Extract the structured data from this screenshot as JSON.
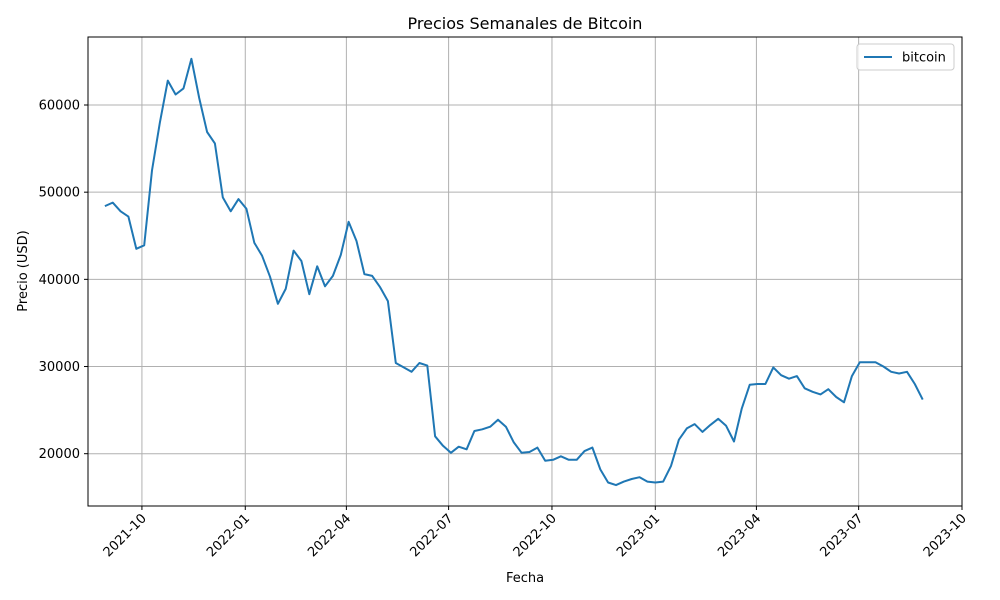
{
  "chart_data": {
    "type": "line",
    "title": "Precios Semanales de Bitcoin",
    "xlabel": "Fecha",
    "ylabel": "Precio (USD)",
    "grid": true,
    "legend_position": "top-right",
    "xlim": [
      "2021-08-14",
      "2023-10-01"
    ],
    "ylim": [
      14000,
      67800
    ],
    "x_ticks": [
      "2021-10-01",
      "2022-01-01",
      "2022-04-01",
      "2022-07-01",
      "2022-10-01",
      "2023-01-01",
      "2023-04-01",
      "2023-07-01",
      "2023-10-01"
    ],
    "x_tick_labels": [
      "2021-10",
      "2022-01",
      "2022-04",
      "2022-07",
      "2022-10",
      "2023-01",
      "2023-04",
      "2023-07",
      "2023-10"
    ],
    "y_ticks": [
      20000,
      30000,
      40000,
      50000,
      60000
    ],
    "y_tick_labels": [
      "20000",
      "30000",
      "40000",
      "50000",
      "60000"
    ],
    "colors": {
      "line": "#1f77b4",
      "grid": "#b0b0b0"
    },
    "series": [
      {
        "name": "bitcoin",
        "x": [
          "2021-08-29",
          "2021-09-05",
          "2021-09-12",
          "2021-09-19",
          "2021-09-26",
          "2021-10-03",
          "2021-10-10",
          "2021-10-17",
          "2021-10-24",
          "2021-10-31",
          "2021-11-07",
          "2021-11-14",
          "2021-11-21",
          "2021-11-28",
          "2021-12-05",
          "2021-12-12",
          "2021-12-19",
          "2021-12-26",
          "2022-01-02",
          "2022-01-09",
          "2022-01-16",
          "2022-01-23",
          "2022-01-30",
          "2022-02-06",
          "2022-02-13",
          "2022-02-20",
          "2022-02-27",
          "2022-03-06",
          "2022-03-13",
          "2022-03-20",
          "2022-03-27",
          "2022-04-03",
          "2022-04-10",
          "2022-04-17",
          "2022-04-24",
          "2022-05-01",
          "2022-05-08",
          "2022-05-15",
          "2022-05-22",
          "2022-05-29",
          "2022-06-05",
          "2022-06-12",
          "2022-06-19",
          "2022-06-26",
          "2022-07-03",
          "2022-07-10",
          "2022-07-17",
          "2022-07-24",
          "2022-07-31",
          "2022-08-07",
          "2022-08-14",
          "2022-08-21",
          "2022-08-28",
          "2022-09-04",
          "2022-09-11",
          "2022-09-18",
          "2022-09-25",
          "2022-10-02",
          "2022-10-09",
          "2022-10-16",
          "2022-10-23",
          "2022-10-30",
          "2022-11-06",
          "2022-11-13",
          "2022-11-20",
          "2022-11-27",
          "2022-12-04",
          "2022-12-11",
          "2022-12-18",
          "2022-12-25",
          "2023-01-01",
          "2023-01-08",
          "2023-01-15",
          "2023-01-22",
          "2023-01-29",
          "2023-02-05",
          "2023-02-12",
          "2023-02-19",
          "2023-02-26",
          "2023-03-05",
          "2023-03-12",
          "2023-03-19",
          "2023-03-26",
          "2023-04-02",
          "2023-04-09",
          "2023-04-16",
          "2023-04-23",
          "2023-04-30",
          "2023-05-07",
          "2023-05-14",
          "2023-05-21",
          "2023-05-28",
          "2023-06-04",
          "2023-06-11",
          "2023-06-18",
          "2023-06-25",
          "2023-07-02",
          "2023-07-09",
          "2023-07-16",
          "2023-07-23",
          "2023-07-30",
          "2023-08-06",
          "2023-08-13",
          "2023-08-20",
          "2023-08-27"
        ],
        "y": [
          48400,
          48800,
          47800,
          47200,
          43500,
          43900,
          52500,
          58000,
          62800,
          61200,
          61900,
          65300,
          60800,
          56900,
          55600,
          49400,
          47800,
          49200,
          48100,
          44200,
          42700,
          40300,
          37200,
          38900,
          43300,
          42100,
          38300,
          41500,
          39200,
          40400,
          42800,
          46600,
          44400,
          40600,
          40400,
          39100,
          37500,
          30400,
          29900,
          29400,
          30400,
          30100,
          22000,
          20900,
          20100,
          20800,
          20500,
          22600,
          22800,
          23100,
          23900,
          23100,
          21300,
          20100,
          20200,
          20700,
          19200,
          19300,
          19700,
          19300,
          19300,
          20300,
          20700,
          18200,
          16700,
          16400,
          16800,
          17100,
          17300,
          16800,
          16700,
          16800,
          18600,
          21600,
          22900,
          23400,
          22500,
          23300,
          24000,
          23200,
          21400,
          25200,
          27900,
          28000,
          28000,
          29900,
          29000,
          28600,
          28900,
          27500,
          27100,
          26800,
          27400,
          26500,
          25900,
          28900,
          30500,
          30500,
          30500,
          30000,
          29400,
          29200,
          29400,
          28000,
          26200
        ]
      }
    ]
  }
}
